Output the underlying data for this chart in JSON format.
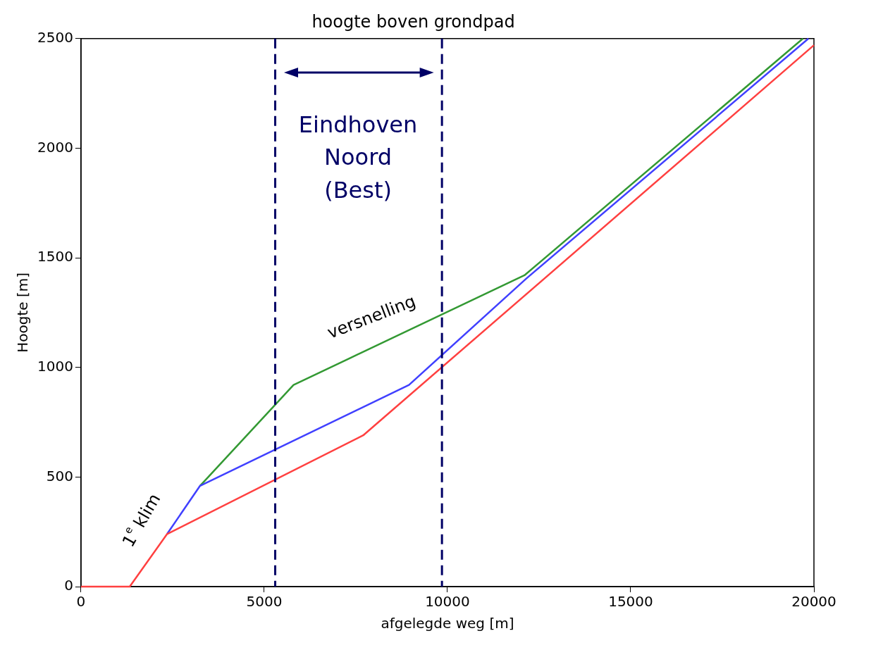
{
  "chart_data": {
    "type": "line",
    "title": "hoogte boven grondpad",
    "xlabel": "afgelegde weg [m]",
    "ylabel": "Hoogte [m]",
    "series": [
      {
        "color": "#ff4040",
        "x": [
          0,
          1330,
          2350,
          7700,
          20000
        ],
        "values": [
          0,
          0,
          240,
          690,
          2470
        ]
      },
      {
        "color": "#4040ff",
        "x": [
          2350,
          3250,
          8950,
          12150,
          19850
        ],
        "values": [
          240,
          460,
          920,
          1405,
          2500
        ]
      },
      {
        "color": "#339933",
        "x": [
          3250,
          5800,
          12100,
          19700
        ],
        "values": [
          460,
          920,
          1420,
          2500
        ]
      }
    ],
    "xlim": [
      0,
      20000
    ],
    "xticks": [
      0,
      5000,
      10000,
      15000,
      20000
    ],
    "ylim": [
      0,
      2500
    ],
    "yticks": [
      0,
      500,
      1000,
      1500,
      2000,
      2500
    ],
    "grid": false,
    "legend": false,
    "marker": "none",
    "line_style": "solid",
    "ref_lines": [
      {
        "axis": "x",
        "value": 5300,
        "color": "#000066",
        "line_style": "dashed"
      },
      {
        "axis": "x",
        "value": 9850,
        "color": "#000066",
        "line_style": "dashed"
      }
    ],
    "annotations": [
      "Eindhoven Noord (Best)",
      "versnelling",
      "1$^{e}$ klim"
    ]
  }
}
